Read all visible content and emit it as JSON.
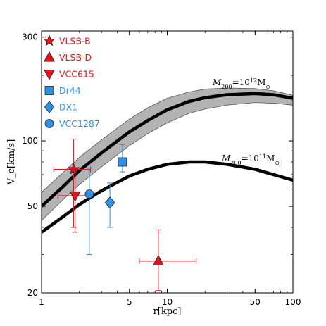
{
  "chart_data": {
    "type": "scatter",
    "xlabel": "r[kpc]",
    "ylabel": "V_c[km/s]",
    "x_scale": "log",
    "y_scale": "log",
    "xlim": [
      1,
      100
    ],
    "ylim": [
      20,
      320
    ],
    "x_ticks": [
      1,
      5,
      10,
      50,
      100
    ],
    "x_tick_labels": [
      "1",
      "5",
      "10",
      "50",
      "100"
    ],
    "y_ticks": [
      20,
      50,
      100,
      300
    ],
    "y_tick_labels": [
      "20",
      "50",
      "100",
      "300"
    ],
    "grid": false,
    "legend_position": "top-left",
    "legend": [
      {
        "label": "VLSB-B",
        "marker": "star",
        "color": "#e8121b"
      },
      {
        "label": "VLSB-D",
        "marker": "triangle-up",
        "color": "#e8121b"
      },
      {
        "label": "VCC615",
        "marker": "triangle-down",
        "color": "#e8121b"
      },
      {
        "label": "Dr44",
        "marker": "square",
        "color": "#2f8fe6"
      },
      {
        "label": "DX1",
        "marker": "diamond",
        "color": "#2f8fe6"
      },
      {
        "label": "VCC1287",
        "marker": "circle",
        "color": "#2f8fe6"
      }
    ],
    "curves": [
      {
        "label_prefix": "M",
        "label_sub": "200",
        "label_mid": "=10",
        "label_sup": "12",
        "label_suffix": "M",
        "label_unit_sub": "⊙",
        "band_color": "#b3b3b3",
        "x": [
          1,
          1.5,
          2,
          3,
          5,
          7,
          10,
          15,
          20,
          30,
          50,
          70,
          100
        ],
        "y": [
          50,
          62,
          73,
          88,
          110,
          124,
          139,
          152,
          158,
          163,
          165,
          163,
          157
        ],
        "band_low": [
          43,
          54,
          63,
          76,
          95,
          108,
          121,
          134,
          140,
          146,
          150,
          149,
          146
        ],
        "band_high": [
          58,
          72,
          84,
          101,
          126,
          142,
          157,
          168,
          173,
          175,
          174,
          170,
          162
        ]
      },
      {
        "label_prefix": "M",
        "label_sub": "200",
        "label_mid": "=10",
        "label_sup": "11",
        "label_suffix": "M",
        "label_unit_sub": "⊙",
        "x": [
          1,
          1.5,
          2,
          3,
          5,
          7,
          10,
          15,
          20,
          30,
          50,
          70,
          100
        ],
        "y": [
          38,
          45,
          51,
          59,
          69,
          74,
          78,
          80,
          80,
          78,
          74,
          70,
          66
        ]
      }
    ],
    "points": [
      {
        "name": "VLSB-B",
        "marker": "star",
        "color": "#e8121b",
        "x": 1.8,
        "y": 74,
        "xerr": [
          0.55,
          0.65
        ],
        "yerr": [
          34,
          28
        ]
      },
      {
        "name": "VLSB-D",
        "marker": "triangle-up",
        "color": "#e8121b",
        "x": 8.5,
        "y": 28,
        "xerr": [
          2.5,
          8.5
        ],
        "yerr": [
          7.5,
          11
        ]
      },
      {
        "name": "VCC615",
        "marker": "triangle-down",
        "color": "#e8121b",
        "x": 1.85,
        "y": 56,
        "xerr": [
          0.5,
          0.45
        ],
        "yerr": [
          18,
          18
        ]
      },
      {
        "name": "Dr44",
        "marker": "square",
        "color": "#2f8fe6",
        "x": 4.4,
        "y": 80,
        "xerr": [
          0,
          0
        ],
        "yerr": [
          8,
          16
        ]
      },
      {
        "name": "DX1",
        "marker": "diamond",
        "color": "#2f8fe6",
        "x": 3.5,
        "y": 52,
        "xerr": [
          0,
          0
        ],
        "yerr": [
          12,
          12
        ]
      },
      {
        "name": "VCC1287",
        "marker": "circle",
        "color": "#2f8fe6",
        "x": 2.4,
        "y": 57,
        "xerr": [
          0,
          0
        ],
        "yerr": [
          27,
          18
        ]
      }
    ]
  }
}
